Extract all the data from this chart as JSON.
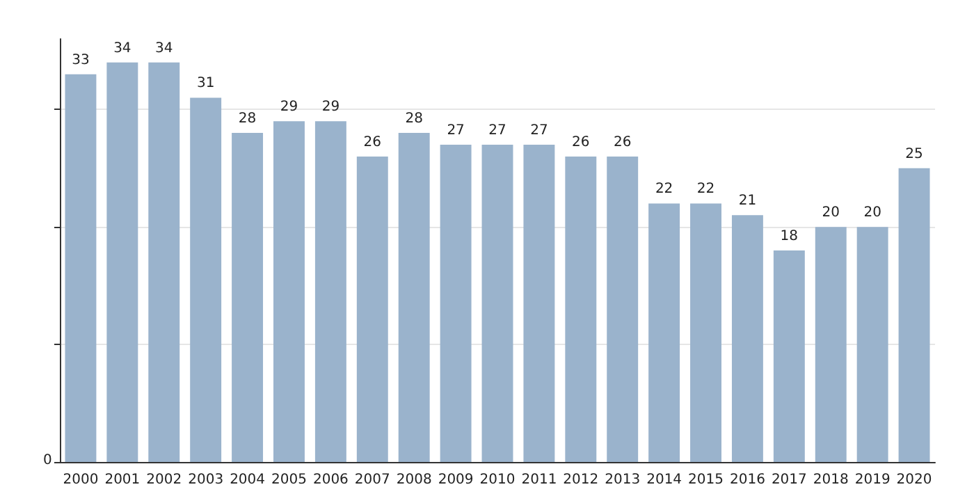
{
  "chart_data": {
    "type": "bar",
    "categories": [
      "2000",
      "2001",
      "2002",
      "2003",
      "2004",
      "2005",
      "2006",
      "2007",
      "2008",
      "2009",
      "2010",
      "2011",
      "2012",
      "2013",
      "2014",
      "2015",
      "2016",
      "2017",
      "2018",
      "2019",
      "2020"
    ],
    "values": [
      33,
      34,
      34,
      31,
      28,
      29,
      29,
      26,
      28,
      27,
      27,
      27,
      26,
      26,
      22,
      22,
      21,
      18,
      20,
      20,
      25
    ],
    "color": "#9ab3cc",
    "ylim": [
      0,
      36
    ],
    "yticks": [
      {
        "value": 0,
        "label": null
      },
      {
        "value": 10,
        "label": null
      },
      {
        "value": 20,
        "label": null
      },
      {
        "value": 30,
        "label": null
      }
    ],
    "annotations": [
      "0"
    ],
    "grid": "y",
    "data_labels": true
  }
}
